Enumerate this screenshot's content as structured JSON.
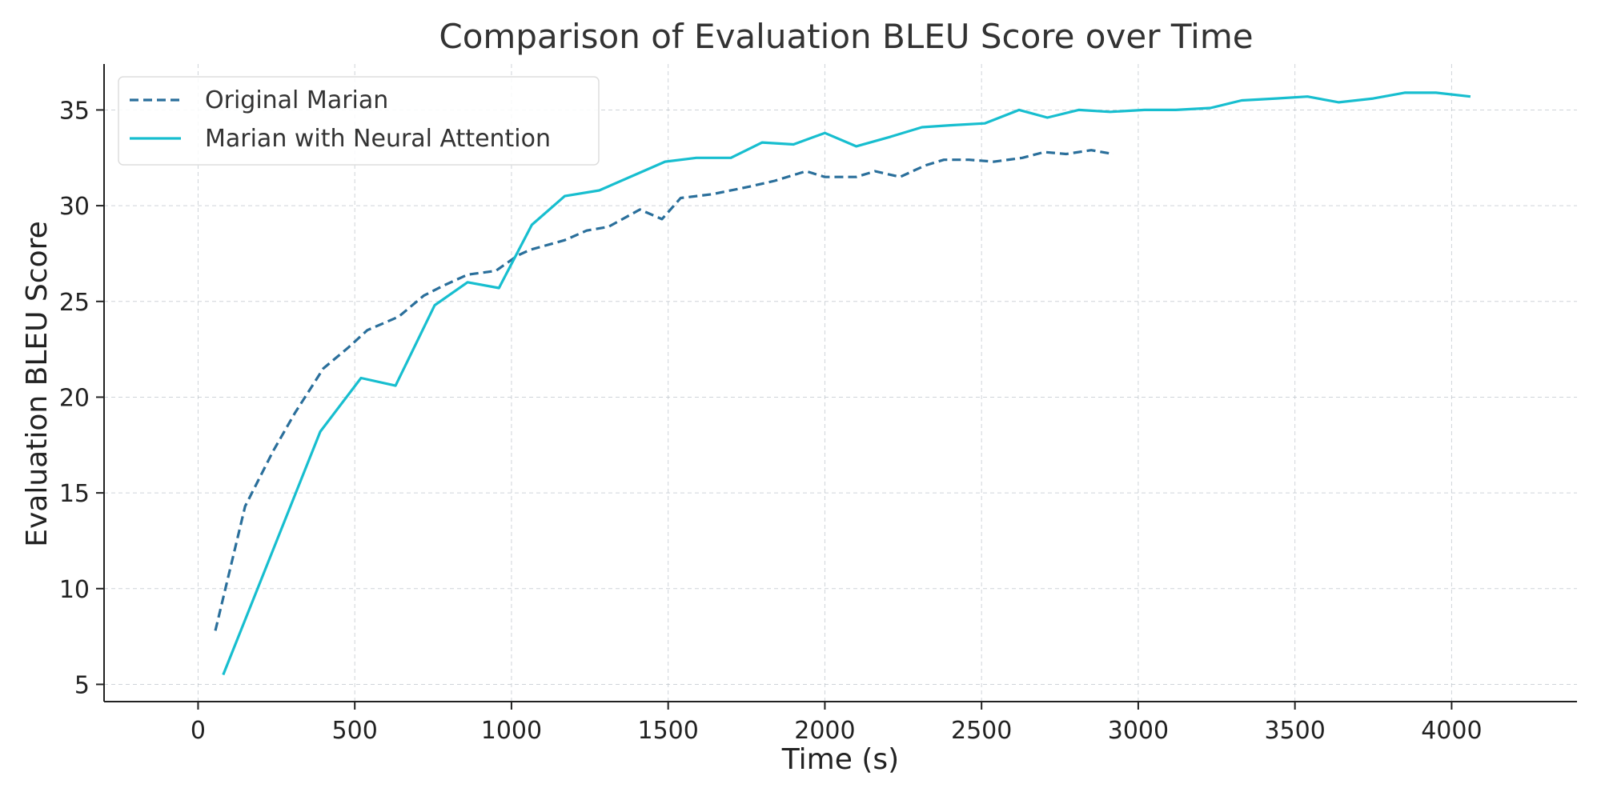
{
  "chart_data": {
    "type": "line",
    "title": "Comparison of Evaluation BLEU Score over Time",
    "xlabel": "Time (s)",
    "ylabel": "Evaluation BLEU Score",
    "xlim": [
      -300,
      4400
    ],
    "ylim": [
      4.1,
      37.4
    ],
    "xticks": [
      0,
      500,
      1000,
      1500,
      2000,
      2500,
      3000,
      3500,
      4000
    ],
    "yticks": [
      5,
      10,
      15,
      20,
      25,
      30,
      35
    ],
    "grid": true,
    "legend_position": "top-left",
    "series": [
      {
        "name": "Original Marian",
        "color": "#2a6f9b",
        "style": "dashed",
        "points": [
          [
            55,
            7.8
          ],
          [
            150,
            14.3
          ],
          [
            240,
            17.2
          ],
          [
            310,
            19.2
          ],
          [
            400,
            21.5
          ],
          [
            480,
            22.6
          ],
          [
            540,
            23.5
          ],
          [
            640,
            24.2
          ],
          [
            720,
            25.3
          ],
          [
            780,
            25.8
          ],
          [
            860,
            26.4
          ],
          [
            950,
            26.6
          ],
          [
            1020,
            27.4
          ],
          [
            1060,
            27.7
          ],
          [
            1170,
            28.2
          ],
          [
            1240,
            28.7
          ],
          [
            1310,
            28.9
          ],
          [
            1410,
            29.8
          ],
          [
            1480,
            29.3
          ],
          [
            1540,
            30.4
          ],
          [
            1640,
            30.6
          ],
          [
            1760,
            31.0
          ],
          [
            1840,
            31.3
          ],
          [
            1940,
            31.8
          ],
          [
            2000,
            31.5
          ],
          [
            2100,
            31.5
          ],
          [
            2160,
            31.8
          ],
          [
            2240,
            31.5
          ],
          [
            2320,
            32.1
          ],
          [
            2380,
            32.4
          ],
          [
            2460,
            32.4
          ],
          [
            2540,
            32.3
          ],
          [
            2630,
            32.5
          ],
          [
            2700,
            32.8
          ],
          [
            2770,
            32.7
          ],
          [
            2850,
            32.9
          ],
          [
            2920,
            32.7
          ]
        ]
      },
      {
        "name": "Marian with Neural Attention",
        "color": "#17becf",
        "style": "solid",
        "points": [
          [
            80,
            5.5
          ],
          [
            390,
            18.2
          ],
          [
            520,
            21.0
          ],
          [
            630,
            20.6
          ],
          [
            755,
            24.8
          ],
          [
            860,
            26.0
          ],
          [
            960,
            25.7
          ],
          [
            1065,
            29.0
          ],
          [
            1170,
            30.5
          ],
          [
            1280,
            30.8
          ],
          [
            1490,
            32.3
          ],
          [
            1590,
            32.5
          ],
          [
            1700,
            32.5
          ],
          [
            1800,
            33.3
          ],
          [
            1900,
            33.2
          ],
          [
            2000,
            33.8
          ],
          [
            2100,
            33.1
          ],
          [
            2210,
            33.6
          ],
          [
            2310,
            34.1
          ],
          [
            2400,
            34.2
          ],
          [
            2510,
            34.3
          ],
          [
            2620,
            35.0
          ],
          [
            2710,
            34.6
          ],
          [
            2810,
            35.0
          ],
          [
            2910,
            34.9
          ],
          [
            3020,
            35.0
          ],
          [
            3120,
            35.0
          ],
          [
            3230,
            35.1
          ],
          [
            3330,
            35.5
          ],
          [
            3440,
            35.6
          ],
          [
            3540,
            35.7
          ],
          [
            3640,
            35.4
          ],
          [
            3750,
            35.6
          ],
          [
            3850,
            35.9
          ],
          [
            3950,
            35.9
          ],
          [
            4060,
            35.7
          ]
        ]
      }
    ]
  }
}
